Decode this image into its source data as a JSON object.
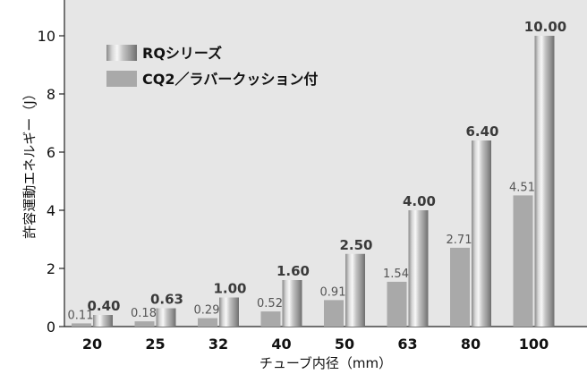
{
  "chart_data": {
    "type": "bar",
    "title": "",
    "xlabel": "チューブ内径（mm）",
    "ylabel": "許容運動エネルギー（J）",
    "categories": [
      "20",
      "25",
      "32",
      "40",
      "50",
      "63",
      "80",
      "100"
    ],
    "series": [
      {
        "name": "CQ2／ラバークッション付",
        "values": [
          0.11,
          0.18,
          0.29,
          0.52,
          0.91,
          1.54,
          2.71,
          4.51
        ],
        "labels": [
          "0.11",
          "0.18",
          "0.29",
          "0.52",
          "0.91",
          "1.54",
          "2.71",
          "4.51"
        ],
        "color": "#a9a9a9"
      },
      {
        "name": "RQシリーズ",
        "values": [
          0.4,
          0.63,
          1.0,
          1.6,
          2.5,
          4.0,
          6.4,
          10.0
        ],
        "labels": [
          "0.40",
          "0.63",
          "1.00",
          "1.60",
          "2.50",
          "4.00",
          "6.40",
          "10.00"
        ],
        "color": "#b8b8b8"
      }
    ],
    "ylim": [
      0,
      11
    ],
    "yticks": [
      0,
      2,
      4,
      6,
      8,
      10
    ],
    "ytick_labels": [
      "0",
      "2",
      "4",
      "6",
      "8",
      "10"
    ],
    "grid": false,
    "legend_position": "top-left",
    "background": "#e6e6e6"
  }
}
